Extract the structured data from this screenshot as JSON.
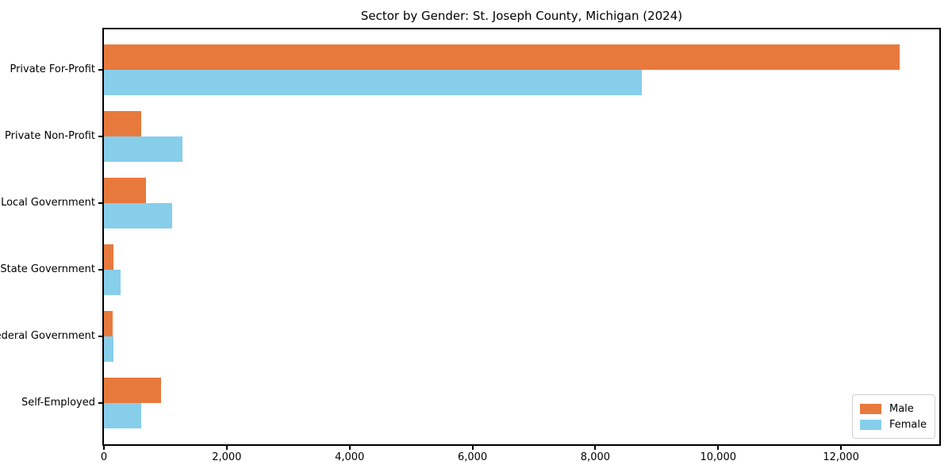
{
  "chart_data": {
    "type": "bar",
    "orientation": "horizontal",
    "title": "Sector by Gender: St. Joseph County, Michigan (2024)",
    "categories": [
      "Private For-Profit",
      "Private Non-Profit",
      "Local Government",
      "State Government",
      "Federal Government",
      "Self-Employed"
    ],
    "series": [
      {
        "name": "Male",
        "color": "#e8793d",
        "values": [
          12950,
          610,
          680,
          160,
          140,
          930
        ]
      },
      {
        "name": "Female",
        "color": "#87ceeb",
        "values": [
          8750,
          1280,
          1110,
          270,
          150,
          600
        ]
      }
    ],
    "xlabel": "",
    "ylabel": "",
    "xlim": [
      0,
      13600
    ],
    "xticks": [
      0,
      2000,
      4000,
      6000,
      8000,
      10000,
      12000
    ],
    "xtick_labels": [
      "0",
      "2,000",
      "4,000",
      "6,000",
      "8,000",
      "10,000",
      "12,000"
    ],
    "legend": {
      "position": "lower right",
      "items": [
        "Male",
        "Female"
      ]
    },
    "grid": false,
    "colors": {
      "axis": "#000000",
      "legend_border": "#cfcfcf",
      "background": "#ffffff"
    }
  }
}
